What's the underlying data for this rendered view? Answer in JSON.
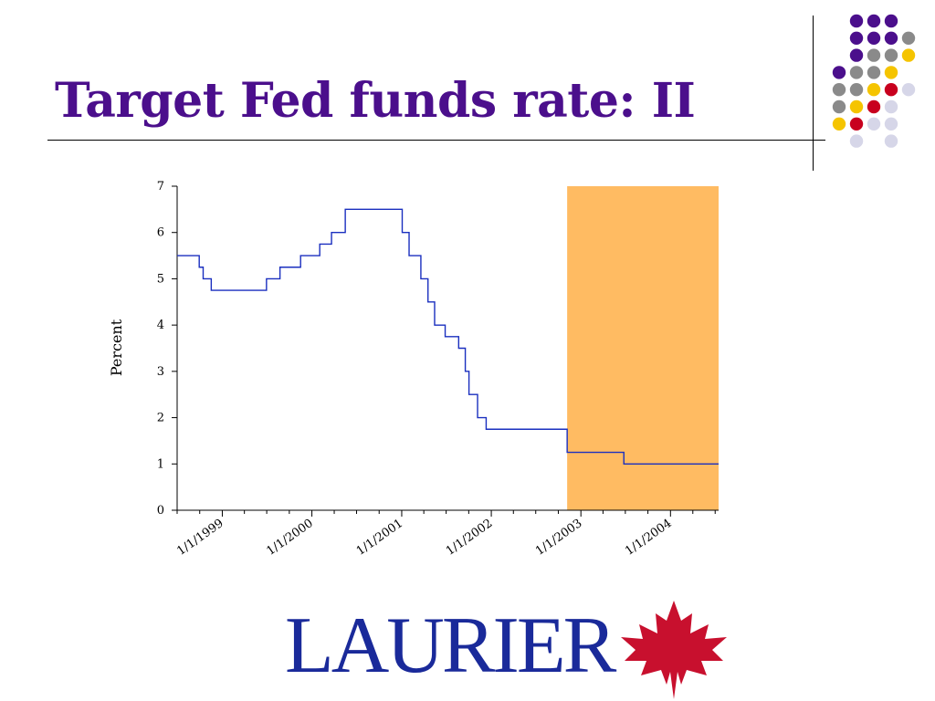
{
  "slide": {
    "title": "Target Fed funds rate: II"
  },
  "colors": {
    "title": "#4b0f8c",
    "line": "#1a2fbf",
    "highlight": "#ffbb62",
    "logo_text": "#1a2a9a",
    "leaf": "#c8102e",
    "dot_purple": "#4b0f8c",
    "dot_gray": "#8a8a8a",
    "dot_yellow": "#f5c400",
    "dot_red": "#c8001e",
    "dot_lavender": "#d6d6e8"
  },
  "logo": {
    "text": "LAURIER",
    "icon": "maple-leaf-icon"
  },
  "chart_data": {
    "type": "line",
    "title": "",
    "xlabel": "",
    "ylabel": "Percent",
    "xlim": [
      "1998-07-01",
      "2004-07-15"
    ],
    "ylim": [
      0,
      7
    ],
    "yticks": [
      0,
      1,
      2,
      3,
      4,
      5,
      6,
      7
    ],
    "xtick_labels": [
      "1/1/1999",
      "1/1/2000",
      "1/1/2001",
      "1/1/2002",
      "1/1/2003",
      "1/1/2004"
    ],
    "xtick_dates": [
      "1999-01-01",
      "2000-01-01",
      "2001-01-01",
      "2002-01-01",
      "2003-01-01",
      "2004-01-01"
    ],
    "step": true,
    "series": [
      {
        "x": [
          "1998-07-01",
          "1998-09-29",
          "1998-10-15",
          "1998-11-17",
          "1999-06-30",
          "1999-08-24",
          "1999-11-16",
          "2000-02-02",
          "2000-03-21",
          "2000-05-16",
          "2001-01-03",
          "2001-01-31",
          "2001-03-20",
          "2001-04-18",
          "2001-05-15",
          "2001-06-27",
          "2001-08-21",
          "2001-09-17",
          "2001-10-02",
          "2001-11-06",
          "2001-12-11",
          "2002-11-06",
          "2003-06-25",
          "2004-07-15"
        ],
        "values": [
          5.5,
          5.25,
          5.0,
          4.75,
          5.0,
          5.25,
          5.5,
          5.75,
          6.0,
          6.5,
          6.0,
          5.5,
          5.0,
          4.5,
          4.0,
          3.75,
          3.5,
          3.0,
          2.5,
          2.0,
          1.75,
          1.25,
          1.0,
          1.0
        ]
      }
    ],
    "highlight_region": {
      "x_start": "2002-11-06",
      "x_end": "2004-07-15",
      "y_start": 0,
      "y_end": 7
    },
    "grid": false,
    "legend": "none"
  }
}
